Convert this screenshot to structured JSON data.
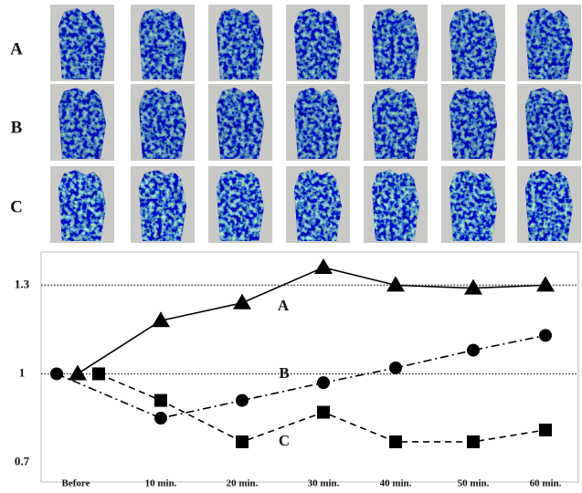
{
  "row_labels": [
    "A",
    "B",
    "C"
  ],
  "chart_data": {
    "type": "line",
    "categories": [
      "Before",
      "10 min.",
      "20 min.",
      "30 min.",
      "40 min.",
      "50 min.",
      "60 min."
    ],
    "series": [
      {
        "name": "A",
        "color": "#000000",
        "marker": "triangle",
        "dash": "solid",
        "values": [
          1.0,
          1.18,
          1.24,
          1.36,
          1.3,
          1.29,
          1.3
        ]
      },
      {
        "name": "B",
        "color": "#000000",
        "marker": "circle",
        "dash": "dashdot",
        "values": [
          1.0,
          0.85,
          0.91,
          0.97,
          1.02,
          1.08,
          1.13
        ]
      },
      {
        "name": "C",
        "color": "#000000",
        "marker": "square",
        "dash": "dashed",
        "values": [
          1.0,
          0.91,
          0.77,
          0.87,
          0.77,
          0.77,
          0.81
        ]
      }
    ],
    "ylim": [
      0.64,
      1.4
    ],
    "yticks": [
      0.7,
      1,
      1.3
    ],
    "hlines": [
      1,
      1.3
    ]
  }
}
